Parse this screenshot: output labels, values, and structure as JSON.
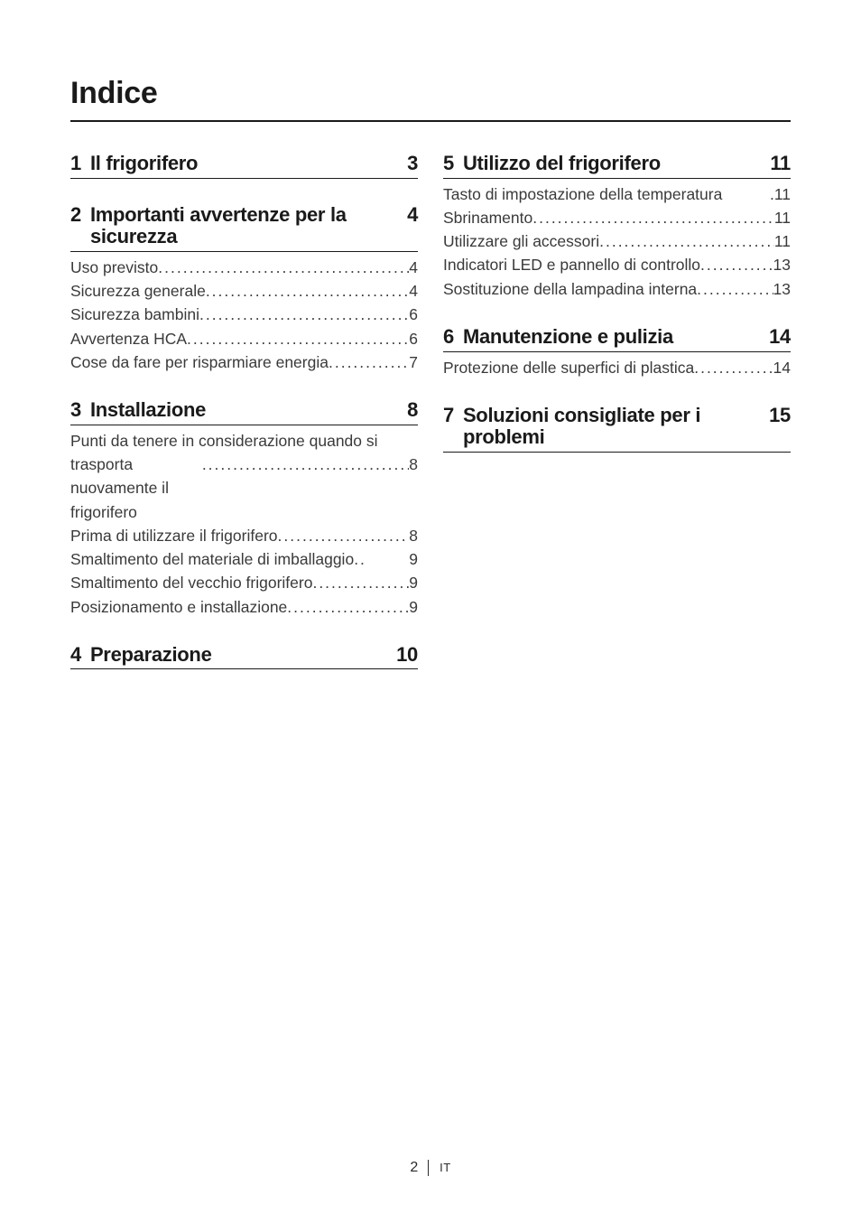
{
  "title": "Indice",
  "left": [
    {
      "type": "section",
      "num": "1",
      "label": "Il frigorifero",
      "page": "3",
      "entries": []
    },
    {
      "type": "section",
      "num": "2",
      "label": "Importanti avvertenze per la sicurezza",
      "page": "4",
      "entries": [
        {
          "label": "Uso previsto",
          "page": "4"
        },
        {
          "label": "Sicurezza generale",
          "page": "4"
        },
        {
          "label": "Sicurezza bambini",
          "page": "6"
        },
        {
          "label": "Avvertenza HCA",
          "page": "6"
        },
        {
          "label": "Cose da fare per risparmiare energia",
          "page": "7"
        }
      ]
    },
    {
      "type": "section",
      "num": "3",
      "label": "Installazione",
      "page": "8",
      "entries": [
        {
          "wrap": true,
          "line1": "Punti da tenere in considerazione quando si",
          "line2_label": "trasporta nuovamente il frigorifero",
          "page": "8"
        },
        {
          "label": "Prima di utilizzare il frigorifero",
          "page": "8"
        },
        {
          "label": "Smaltimento del materiale di imballaggio",
          "page": "9",
          "nodots_short": true
        },
        {
          "label": "Smaltimento del vecchio frigorifero",
          "page": "9"
        },
        {
          "label": "Posizionamento e installazione",
          "page": "9"
        }
      ]
    },
    {
      "type": "section",
      "num": "4",
      "label": "Preparazione",
      "page": "10",
      "entries": []
    }
  ],
  "right": [
    {
      "type": "section",
      "num": "5",
      "label": "Utilizzo del frigorifero",
      "page": "11",
      "entries": [
        {
          "label": "Tasto di impostazione della temperatura",
          "page": "11",
          "nodots": true
        },
        {
          "label": "Sbrinamento",
          "page": "11"
        },
        {
          "label": "Utilizzare gli accessori",
          "page": "11"
        },
        {
          "label": "Indicatori LED e pannello di controllo",
          "page": "13"
        },
        {
          "label": "Sostituzione della lampadina interna",
          "page": "13"
        }
      ]
    },
    {
      "type": "section",
      "num": "6",
      "label": "Manutenzione e pulizia",
      "page": "14",
      "entries": [
        {
          "label": "Protezione delle superfici di plastica",
          "page": "14"
        }
      ]
    },
    {
      "type": "section",
      "num": "7",
      "label": "Soluzioni consigliate per i problemi",
      "page": "15",
      "entries": []
    }
  ],
  "dot_leader": "............................................................",
  "short_leader": " ..",
  "nodots_leader": " .",
  "footer": {
    "page_number": "2",
    "lang": "IT"
  },
  "colors": {
    "text": "#1a1a1a",
    "entry_text": "#3a3a3a",
    "rule": "#1a1a1a",
    "background": "#ffffff"
  },
  "fonts": {
    "title_pt": 34,
    "title_weight": 700,
    "section_pt": 22,
    "section_weight": 700,
    "entry_pt": 17.5,
    "footer_pt": 16,
    "footer_lang_pt": 13
  }
}
